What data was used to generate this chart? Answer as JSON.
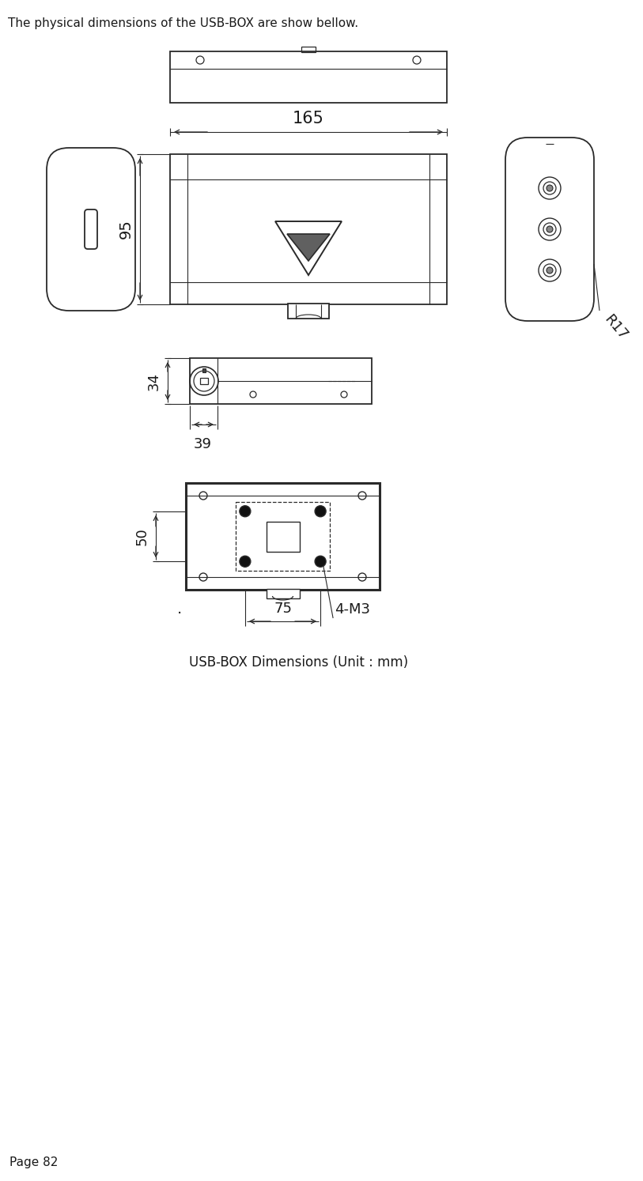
{
  "bg_color": "#ffffff",
  "text_color": "#1a1a1a",
  "line_color": "#2a2a2a",
  "header_text": "The physical dimensions of the USB-BOX are show bellow.",
  "caption": "USB-BOX Dimensions (Unit : mm)",
  "page_label": "Page 82",
  "dim_165": "165",
  "dim_95": "95",
  "dim_34": "34",
  "dim_39": "39",
  "dim_50": "50",
  "dim_75": "75",
  "dim_r17": "R17",
  "dim_4m3": "4-M3"
}
